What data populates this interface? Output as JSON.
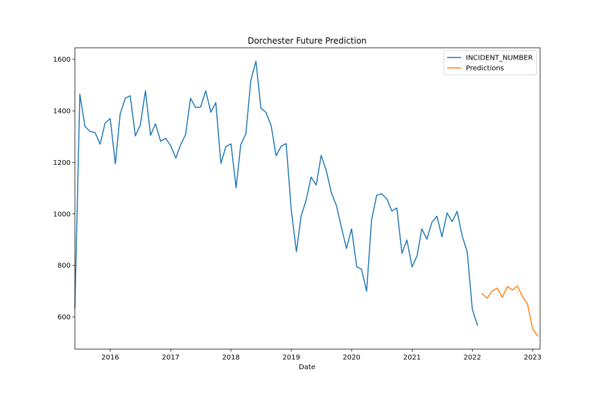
{
  "chart_data": {
    "type": "line",
    "title": "Dorchester Future Prediction",
    "xlabel": "Date",
    "ylabel": "",
    "xlim": [
      "2015-06-01",
      "2023-02-15"
    ],
    "ylim": [
      475,
      1645
    ],
    "x_ticks": [
      "2016",
      "2017",
      "2018",
      "2019",
      "2020",
      "2021",
      "2022",
      "2023"
    ],
    "y_ticks": [
      600,
      800,
      1000,
      1200,
      1400,
      1600
    ],
    "legend": "top-right",
    "grid": false,
    "series": [
      {
        "name": "INCIDENT_NUMBER",
        "color": "#1f77b4",
        "points": [
          [
            "2015-06-01",
            635
          ],
          [
            "2015-07-01",
            1465
          ],
          [
            "2015-08-01",
            1340
          ],
          [
            "2015-09-01",
            1320
          ],
          [
            "2015-10-01",
            1316
          ],
          [
            "2015-11-01",
            1271
          ],
          [
            "2015-12-01",
            1353
          ],
          [
            "2016-01-01",
            1370
          ],
          [
            "2016-02-01",
            1194
          ],
          [
            "2016-03-01",
            1388
          ],
          [
            "2016-04-01",
            1449
          ],
          [
            "2016-05-01",
            1459
          ],
          [
            "2016-06-01",
            1303
          ],
          [
            "2016-07-01",
            1345
          ],
          [
            "2016-08-01",
            1478
          ],
          [
            "2016-09-01",
            1305
          ],
          [
            "2016-10-01",
            1350
          ],
          [
            "2016-11-01",
            1282
          ],
          [
            "2016-12-01",
            1294
          ],
          [
            "2017-01-01",
            1265
          ],
          [
            "2017-02-01",
            1217
          ],
          [
            "2017-03-01",
            1267
          ],
          [
            "2017-04-01",
            1308
          ],
          [
            "2017-05-01",
            1449
          ],
          [
            "2017-06-01",
            1413
          ],
          [
            "2017-07-01",
            1415
          ],
          [
            "2017-08-01",
            1478
          ],
          [
            "2017-09-01",
            1395
          ],
          [
            "2017-10-01",
            1432
          ],
          [
            "2017-11-01",
            1196
          ],
          [
            "2017-12-01",
            1261
          ],
          [
            "2018-01-01",
            1272
          ],
          [
            "2018-02-01",
            1101
          ],
          [
            "2018-03-01",
            1269
          ],
          [
            "2018-04-01",
            1311
          ],
          [
            "2018-05-01",
            1518
          ],
          [
            "2018-06-01",
            1593
          ],
          [
            "2018-07-01",
            1411
          ],
          [
            "2018-08-01",
            1394
          ],
          [
            "2018-09-01",
            1343
          ],
          [
            "2018-10-01",
            1226
          ],
          [
            "2018-11-01",
            1263
          ],
          [
            "2018-12-01",
            1273
          ],
          [
            "2019-01-01",
            1014
          ],
          [
            "2019-02-01",
            853
          ],
          [
            "2019-03-01",
            990
          ],
          [
            "2019-04-01",
            1054
          ],
          [
            "2019-05-01",
            1143
          ],
          [
            "2019-06-01",
            1112
          ],
          [
            "2019-07-01",
            1227
          ],
          [
            "2019-08-01",
            1168
          ],
          [
            "2019-09-01",
            1081
          ],
          [
            "2019-10-01",
            1033
          ],
          [
            "2019-11-01",
            946
          ],
          [
            "2019-12-01",
            866
          ],
          [
            "2020-01-01",
            942
          ],
          [
            "2020-02-01",
            795
          ],
          [
            "2020-03-01",
            785
          ],
          [
            "2020-04-01",
            700
          ],
          [
            "2020-05-01",
            975
          ],
          [
            "2020-06-01",
            1073
          ],
          [
            "2020-07-01",
            1078
          ],
          [
            "2020-08-01",
            1059
          ],
          [
            "2020-09-01",
            1011
          ],
          [
            "2020-10-01",
            1023
          ],
          [
            "2020-11-01",
            847
          ],
          [
            "2020-12-01",
            899
          ],
          [
            "2021-01-01",
            794
          ],
          [
            "2021-02-01",
            838
          ],
          [
            "2021-03-01",
            942
          ],
          [
            "2021-04-01",
            902
          ],
          [
            "2021-05-01",
            967
          ],
          [
            "2021-06-01",
            991
          ],
          [
            "2021-07-01",
            911
          ],
          [
            "2021-08-01",
            1004
          ],
          [
            "2021-09-01",
            970
          ],
          [
            "2021-10-01",
            1010
          ],
          [
            "2021-11-01",
            913
          ],
          [
            "2021-12-01",
            853
          ],
          [
            "2022-01-01",
            629
          ],
          [
            "2022-02-01",
            568
          ]
        ]
      },
      {
        "name": "Predictions",
        "color": "#ff7f0e",
        "points": [
          [
            "2022-03-01",
            690
          ],
          [
            "2022-04-01",
            673
          ],
          [
            "2022-05-01",
            701
          ],
          [
            "2022-06-01",
            712
          ],
          [
            "2022-07-01",
            676
          ],
          [
            "2022-08-01",
            718
          ],
          [
            "2022-09-01",
            705
          ],
          [
            "2022-10-01",
            720
          ],
          [
            "2022-11-01",
            679
          ],
          [
            "2022-12-01",
            650
          ],
          [
            "2023-01-01",
            553
          ],
          [
            "2023-02-01",
            526
          ]
        ]
      }
    ]
  }
}
